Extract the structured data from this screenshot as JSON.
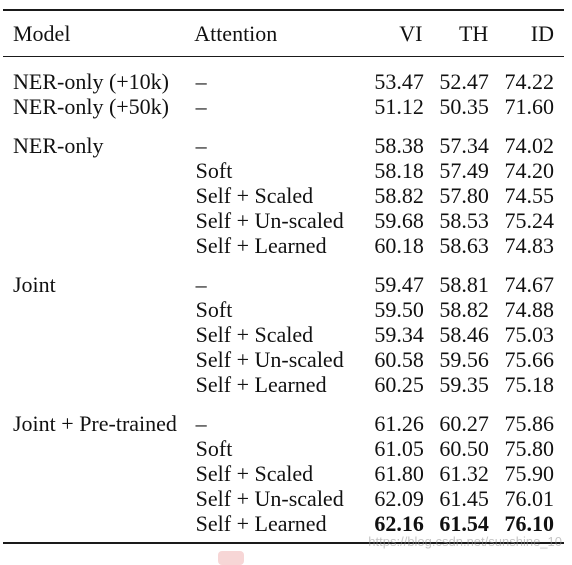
{
  "header": {
    "model": "Model",
    "attention": "Attention",
    "vi": "VI",
    "th": "TH",
    "id": "ID"
  },
  "groups": [
    {
      "rows": [
        {
          "model": "NER-only (+10k)",
          "attention": "–",
          "vi": "53.47",
          "th": "52.47",
          "id": "74.22"
        },
        {
          "model": "NER-only (+50k)",
          "attention": "–",
          "vi": "51.12",
          "th": "50.35",
          "id": "71.60"
        }
      ]
    },
    {
      "rows": [
        {
          "model": "NER-only",
          "attention": "–",
          "vi": "58.38",
          "th": "57.34",
          "id": "74.02"
        },
        {
          "model": "",
          "attention": "Soft",
          "vi": "58.18",
          "th": "57.49",
          "id": "74.20"
        },
        {
          "model": "",
          "attention": "Self + Scaled",
          "vi": "58.82",
          "th": "57.80",
          "id": "74.55"
        },
        {
          "model": "",
          "attention": "Self + Un-scaled",
          "vi": "59.68",
          "th": "58.53",
          "id": "75.24"
        },
        {
          "model": "",
          "attention": "Self + Learned",
          "vi": "60.18",
          "th": "58.63",
          "id": "74.83"
        }
      ]
    },
    {
      "rows": [
        {
          "model": "Joint",
          "attention": "–",
          "vi": "59.47",
          "th": "58.81",
          "id": "74.67"
        },
        {
          "model": "",
          "attention": "Soft",
          "vi": "59.50",
          "th": "58.82",
          "id": "74.88"
        },
        {
          "model": "",
          "attention": "Self + Scaled",
          "vi": "59.34",
          "th": "58.46",
          "id": "75.03"
        },
        {
          "model": "",
          "attention": "Self + Un-scaled",
          "vi": "60.58",
          "th": "59.56",
          "id": "75.66"
        },
        {
          "model": "",
          "attention": "Self + Learned",
          "vi": "60.25",
          "th": "59.35",
          "id": "75.18"
        }
      ]
    },
    {
      "rows": [
        {
          "model": "Joint + Pre-trained",
          "attention": "–",
          "vi": "61.26",
          "th": "60.27",
          "id": "75.86"
        },
        {
          "model": "",
          "attention": "Soft",
          "vi": "61.05",
          "th": "60.50",
          "id": "75.80"
        },
        {
          "model": "",
          "attention": "Self + Scaled",
          "vi": "61.80",
          "th": "61.32",
          "id": "75.90"
        },
        {
          "model": "",
          "attention": "Self + Un-scaled",
          "vi": "62.09",
          "th": "61.45",
          "id": "76.01"
        },
        {
          "model": "",
          "attention": "Self + Learned",
          "vi": "62.16",
          "th": "61.54",
          "id": "76.10",
          "bold": true
        }
      ]
    }
  ],
  "watermark": "https://blog.csdn.net/sunshine_10"
}
